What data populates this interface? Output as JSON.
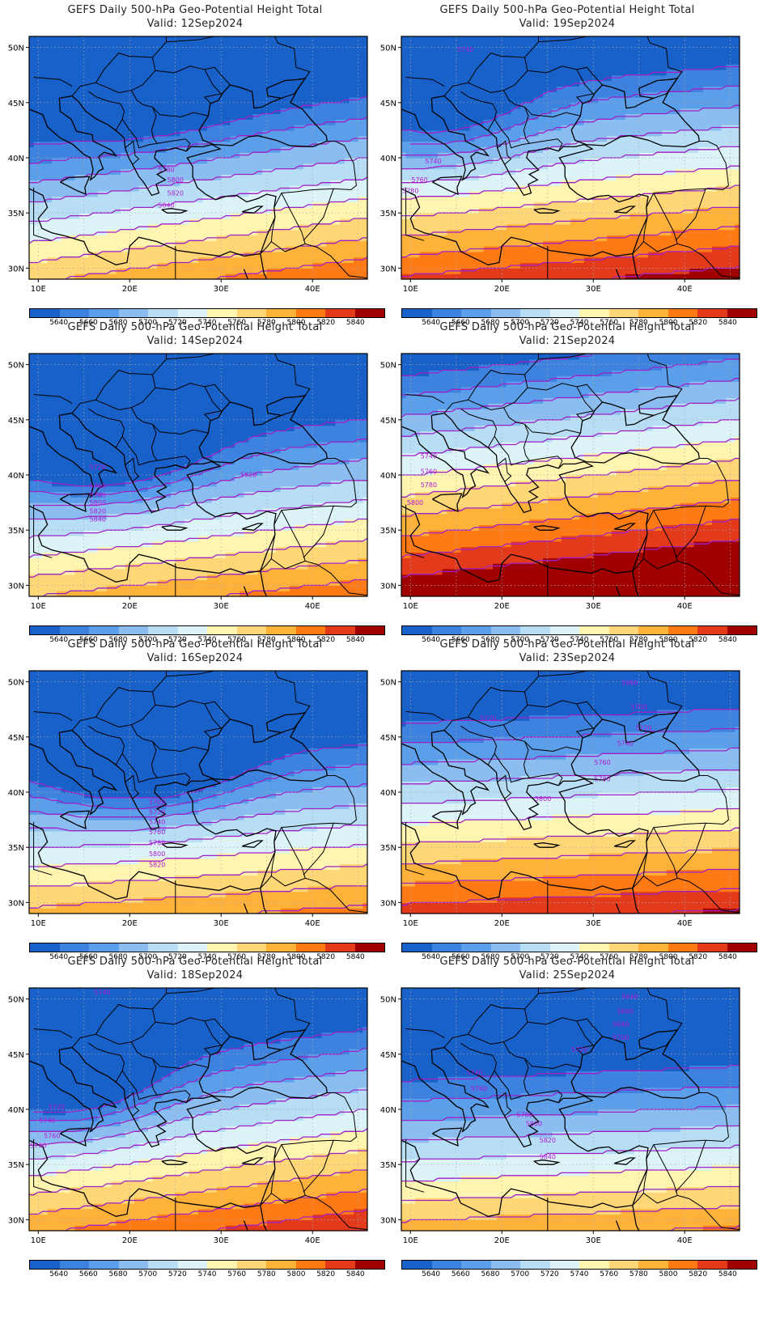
{
  "page_title": "GEFS Daily 500-hPa Geo-Potential Height Total",
  "colorbar": {
    "labels": [
      "5640",
      "5660",
      "5680",
      "5700",
      "5720",
      "5740",
      "5760",
      "5780",
      "5800",
      "5820",
      "5840"
    ],
    "colors": [
      "#1861c9",
      "#3c82de",
      "#5b9ee9",
      "#8bbdf0",
      "#b7def4",
      "#dcf4f8",
      "#fff4b0",
      "#ffd777",
      "#ffb23a",
      "#ff7a14",
      "#e23a1a",
      "#a00000"
    ]
  },
  "axes": {
    "x_ticks": [
      "10E",
      "20E",
      "30E",
      "40E"
    ],
    "y_ticks": [
      "50N",
      "45N",
      "40N",
      "35N",
      "30N"
    ],
    "lon_range": [
      9,
      46
    ],
    "lat_range": [
      29,
      51
    ]
  },
  "panels": [
    {
      "title": "GEFS Daily 500-hPa Geo-Potential Height Total",
      "valid": "Valid: 12Sep2024",
      "contour_labels": [
        "5780",
        "5800",
        "5820",
        "5840"
      ]
    },
    {
      "title": "GEFS Daily 500-hPa Geo-Potential Height Total",
      "valid": "Valid: 19Sep2024",
      "contour_labels": [
        "5740",
        "5740",
        "5760",
        "5780"
      ]
    },
    {
      "title": "GEFS Daily 500-hPa Geo-Potential Height Total",
      "valid": "Valid: 14Sep2024",
      "contour_labels": [
        "5720",
        "5760",
        "5780",
        "5800",
        "5820",
        "5840",
        "5820"
      ]
    },
    {
      "title": "GEFS Daily 500-hPa Geo-Potential Height Total",
      "valid": "Valid: 21Sep2024",
      "contour_labels": [
        "5740",
        "5760",
        "5780",
        "5800"
      ]
    },
    {
      "title": "GEFS Daily 500-hPa Geo-Potential Height Total",
      "valid": "Valid: 16Sep2024",
      "contour_labels": [
        "5700",
        "5720",
        "5740",
        "5760",
        "5780",
        "5800",
        "5820"
      ]
    },
    {
      "title": "GEFS Daily 500-hPa Geo-Potential Height Total",
      "valid": "Valid: 23Sep2024",
      "contour_labels": [
        "5680",
        "5700",
        "5720",
        "5720",
        "5740",
        "5760",
        "5780",
        "5800"
      ]
    },
    {
      "title": "GEFS Daily 500-hPa Geo-Potential Height Total",
      "valid": "Valid: 18Sep2024",
      "contour_labels": [
        "5740",
        "5720",
        "5740",
        "5760",
        "5780"
      ]
    },
    {
      "title": "GEFS Daily 500-hPa Geo-Potential Height Total",
      "valid": "Valid: 25Sep2024",
      "contour_labels": [
        "5640",
        "5660",
        "5680",
        "5700",
        "5720",
        "5740",
        "5760",
        "5780",
        "5800",
        "5820",
        "5840"
      ]
    }
  ]
}
